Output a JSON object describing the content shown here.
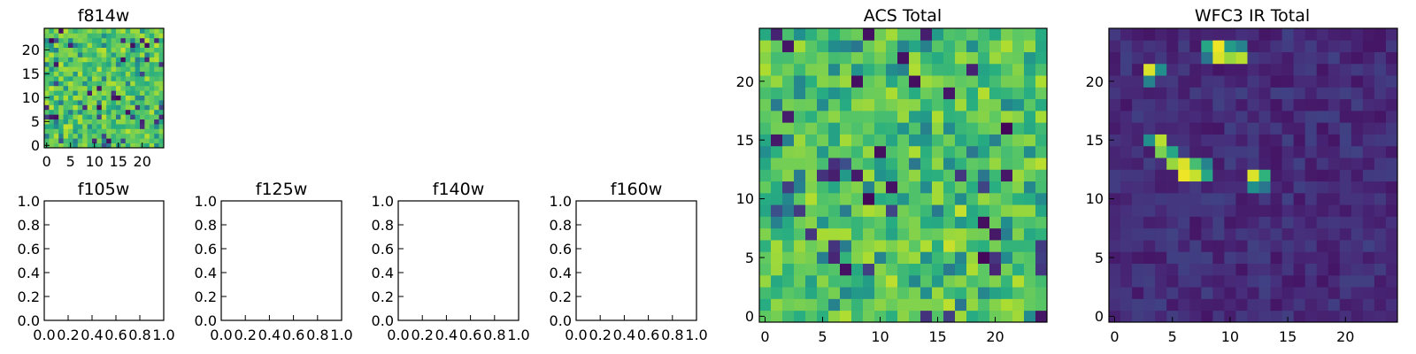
{
  "chart_data": [
    {
      "id": "f814w",
      "type": "heatmap",
      "title": "f814w",
      "grid_size": 25,
      "colormap": "viridis",
      "pattern": "noise",
      "seed": 814,
      "xticks": [
        "0",
        "5",
        "10",
        "15",
        "20"
      ],
      "yticks": [
        "0",
        "5",
        "10",
        "15",
        "20"
      ],
      "xlim": [
        0,
        25
      ],
      "ylim": [
        0,
        25
      ]
    },
    {
      "id": "f105w",
      "type": "empty",
      "title": "f105w",
      "xticks": [
        "0.0",
        "0.2",
        "0.4",
        "0.6",
        "0.8",
        "1.0"
      ],
      "yticks": [
        "0.0",
        "0.2",
        "0.4",
        "0.6",
        "0.8",
        "1.0"
      ],
      "xlim": [
        0,
        1
      ],
      "ylim": [
        0,
        1
      ]
    },
    {
      "id": "f125w",
      "type": "empty",
      "title": "f125w",
      "xticks": [
        "0.0",
        "0.2",
        "0.4",
        "0.6",
        "0.8",
        "1.0"
      ],
      "yticks": [
        "0.0",
        "0.2",
        "0.4",
        "0.6",
        "0.8",
        "1.0"
      ],
      "xlim": [
        0,
        1
      ],
      "ylim": [
        0,
        1
      ]
    },
    {
      "id": "f140w",
      "type": "empty",
      "title": "f140w",
      "xticks": [
        "0.0",
        "0.2",
        "0.4",
        "0.6",
        "0.8",
        "1.0"
      ],
      "yticks": [
        "0.0",
        "0.2",
        "0.4",
        "0.6",
        "0.8",
        "1.0"
      ],
      "xlim": [
        0,
        1
      ],
      "ylim": [
        0,
        1
      ]
    },
    {
      "id": "f160w",
      "type": "empty",
      "title": "f160w",
      "xticks": [
        "0.0",
        "0.2",
        "0.4",
        "0.6",
        "0.8",
        "1.0"
      ],
      "yticks": [
        "0.0",
        "0.2",
        "0.4",
        "0.6",
        "0.8",
        "1.0"
      ],
      "xlim": [
        0,
        1
      ],
      "ylim": [
        0,
        1
      ]
    },
    {
      "id": "acs-total",
      "type": "heatmap",
      "title": "ACS Total",
      "grid_size": 25,
      "colormap": "viridis",
      "pattern": "noise",
      "seed": 1234,
      "xticks": [
        "0",
        "5",
        "10",
        "15",
        "20"
      ],
      "yticks": [
        "0",
        "5",
        "10",
        "15",
        "20"
      ],
      "xlim": [
        0,
        25
      ],
      "ylim": [
        0,
        25
      ]
    },
    {
      "id": "wfc3-ir-total",
      "type": "heatmap",
      "title": "WFC3 IR Total",
      "grid_size": 25,
      "colormap": "viridis",
      "pattern": "sparse",
      "seed": 3,
      "background_range": [
        0.06,
        0.2
      ],
      "bright_pixels": [
        {
          "x": 8,
          "y": 23,
          "v": 0.6
        },
        {
          "x": 9,
          "y": 23,
          "v": 0.98
        },
        {
          "x": 10,
          "y": 23,
          "v": 0.55
        },
        {
          "x": 11,
          "y": 23,
          "v": 0.45
        },
        {
          "x": 9,
          "y": 22,
          "v": 0.95
        },
        {
          "x": 10,
          "y": 22,
          "v": 0.85
        },
        {
          "x": 11,
          "y": 22,
          "v": 0.9
        },
        {
          "x": 8,
          "y": 22,
          "v": 0.4
        },
        {
          "x": 3,
          "y": 21,
          "v": 0.95
        },
        {
          "x": 4,
          "y": 21,
          "v": 0.5
        },
        {
          "x": 3,
          "y": 20,
          "v": 0.45
        },
        {
          "x": 3,
          "y": 15,
          "v": 0.5
        },
        {
          "x": 4,
          "y": 15,
          "v": 0.9
        },
        {
          "x": 4,
          "y": 14,
          "v": 0.8
        },
        {
          "x": 5,
          "y": 14,
          "v": 0.6
        },
        {
          "x": 5,
          "y": 13,
          "v": 0.85
        },
        {
          "x": 6,
          "y": 13,
          "v": 0.95
        },
        {
          "x": 7,
          "y": 13,
          "v": 0.7
        },
        {
          "x": 8,
          "y": 13,
          "v": 0.45
        },
        {
          "x": 6,
          "y": 12,
          "v": 0.98
        },
        {
          "x": 7,
          "y": 12,
          "v": 0.92
        },
        {
          "x": 8,
          "y": 12,
          "v": 0.6
        },
        {
          "x": 12,
          "y": 12,
          "v": 0.95
        },
        {
          "x": 13,
          "y": 12,
          "v": 0.65
        },
        {
          "x": 12,
          "y": 11,
          "v": 0.5
        },
        {
          "x": 13,
          "y": 11,
          "v": 0.4
        }
      ],
      "xticks": [
        "0",
        "5",
        "10",
        "15",
        "20"
      ],
      "yticks": [
        "0",
        "5",
        "10",
        "15",
        "20"
      ],
      "xlim": [
        0,
        25
      ],
      "ylim": [
        0,
        25
      ]
    }
  ]
}
